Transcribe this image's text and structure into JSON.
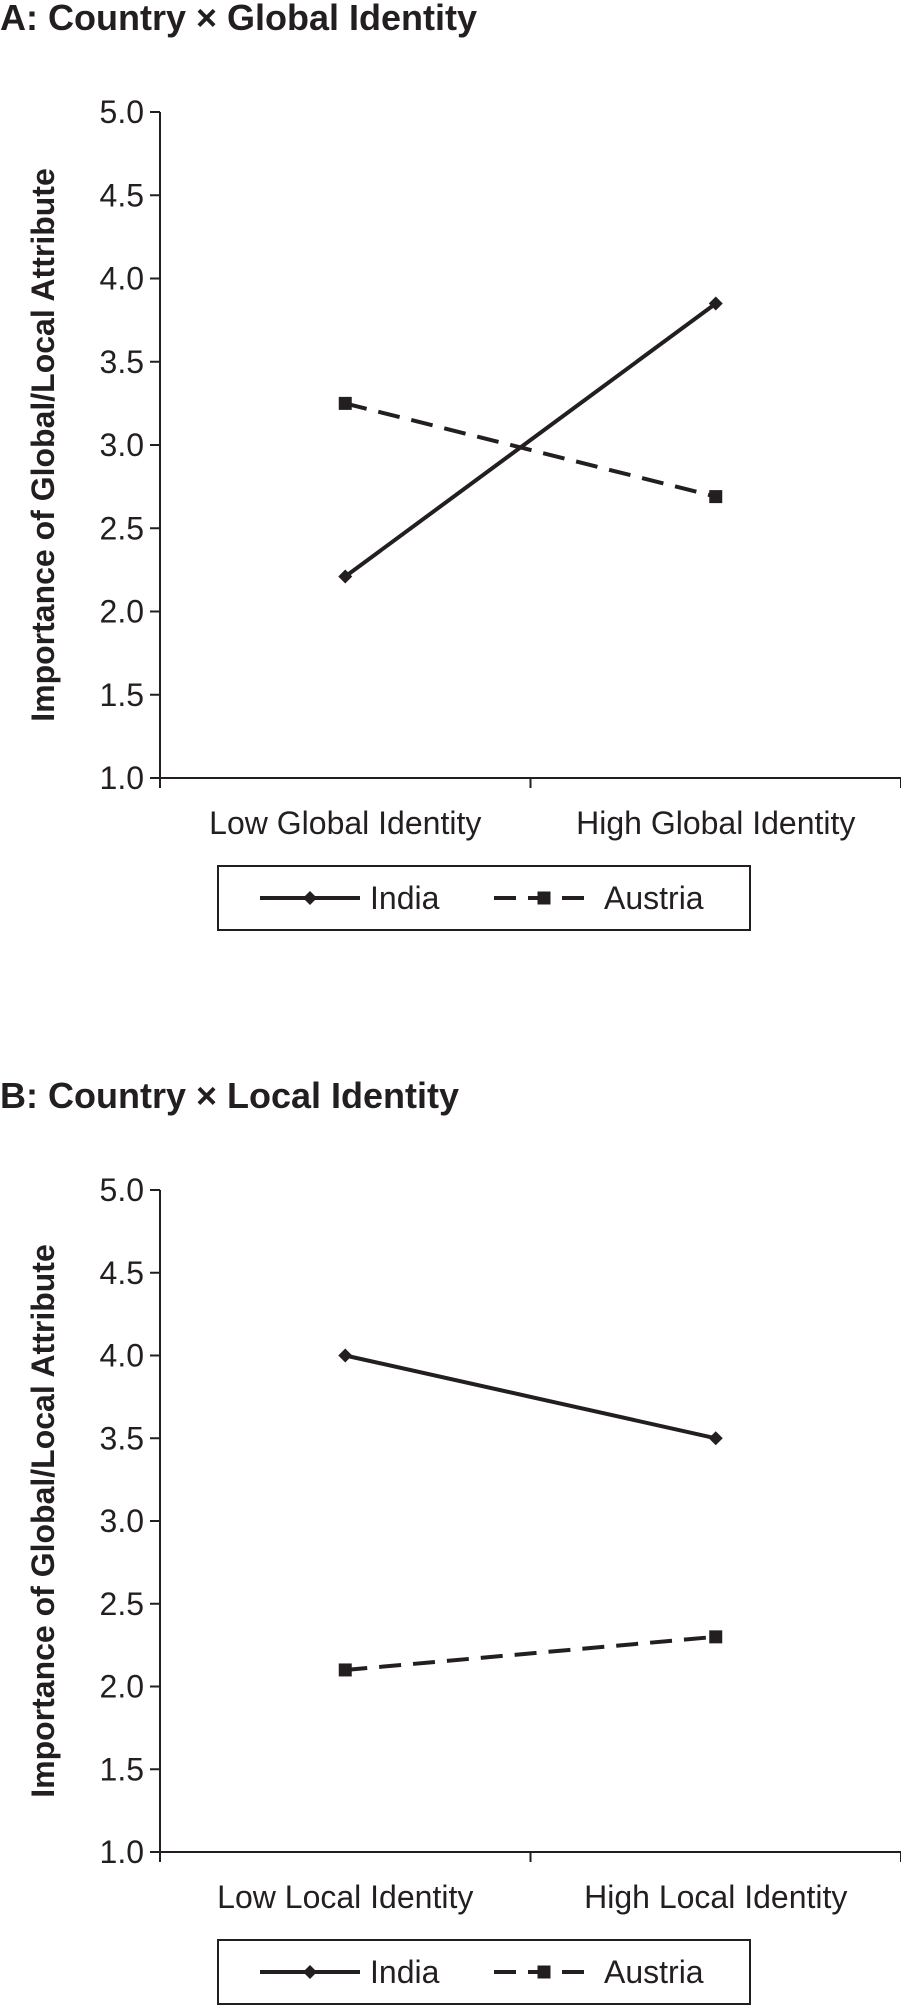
{
  "chart_data": [
    {
      "type": "line",
      "title": "A: Country × Global Identity",
      "ylabel": "Importance of Global/Local Attribute",
      "xlabel": "",
      "categories": [
        "Low Global Identity",
        "High Global Identity"
      ],
      "ylim": [
        1.0,
        5.0
      ],
      "yticks": [
        "1.0",
        "1.5",
        "2.0",
        "2.5",
        "3.0",
        "3.5",
        "4.0",
        "4.5",
        "5.0"
      ],
      "grid": false,
      "legend_position": "bottom",
      "series": [
        {
          "name": "India",
          "values": [
            2.21,
            3.85
          ],
          "line_style": "solid",
          "marker": "diamond",
          "color": "#231f20"
        },
        {
          "name": "Austria",
          "values": [
            3.25,
            2.69
          ],
          "line_style": "dashed",
          "marker": "square",
          "color": "#231f20"
        }
      ]
    },
    {
      "type": "line",
      "title": "B: Country × Local Identity",
      "ylabel": "Importance of Global/Local Attribute",
      "xlabel": "",
      "categories": [
        "Low Local Identity",
        "High Local Identity"
      ],
      "ylim": [
        1.0,
        5.0
      ],
      "yticks": [
        "1.0",
        "1.5",
        "2.0",
        "2.5",
        "3.0",
        "3.5",
        "4.0",
        "4.5",
        "5.0"
      ],
      "grid": false,
      "legend_position": "bottom",
      "series": [
        {
          "name": "India",
          "values": [
            4.0,
            3.5
          ],
          "line_style": "solid",
          "marker": "diamond",
          "color": "#231f20"
        },
        {
          "name": "Austria",
          "values": [
            2.1,
            2.3
          ],
          "line_style": "dashed",
          "marker": "square",
          "color": "#231f20"
        }
      ]
    }
  ]
}
